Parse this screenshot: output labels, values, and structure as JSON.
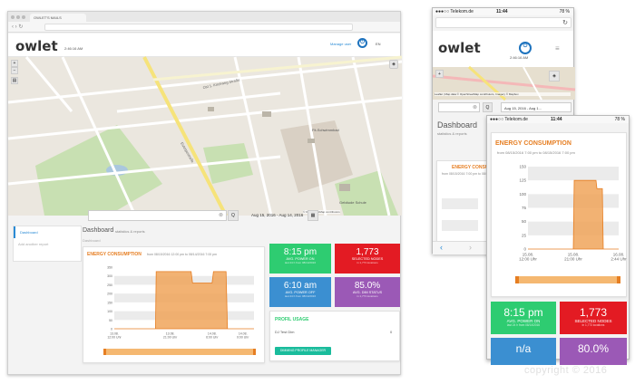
{
  "desktop": {
    "tab_title": "OWLET'S MAILS",
    "logo": "owlet",
    "logo_sub": "2:46:16 AM",
    "user_label": "Manage user",
    "lang": "EN",
    "search_placeholder": "",
    "clear_symbol": "⊗",
    "search_btn": "Q",
    "date_range": "Aug 15, 2016 - Aug 14, 2016",
    "calendar_symbol": "▦",
    "map_attribution": "© OpenStreetMap contributors",
    "map_streets": [
      "Ost 1. Kirchweg-Straße",
      "Euterpestraße",
      "Fit-Schwimmbad",
      "Gebäude Schule"
    ],
    "sidebar": [
      {
        "label": "Dashboard",
        "active": true
      },
      {
        "label": "Add another report",
        "active": false
      }
    ],
    "page_title": "Dashboard",
    "page_subtitle": "statistics & reports",
    "breadcrumb": "Dashboard",
    "energy_title": "ENERGY CONSUMPTION",
    "energy_sub": "from 08/15/2016 12:00 pm to 08/14/2016 7:00 pm",
    "tiles": [
      {
        "value": "8:15 pm",
        "label": "AVG. POWER ON",
        "sub": "last 24 h from 08/14/2016",
        "color": "#2ecc71"
      },
      {
        "value": "1,773",
        "label": "SELECTED NODES",
        "sub": "in 1,773 locations",
        "color": "#e31b23"
      },
      {
        "value": "6:10 am",
        "label": "AVG. POWER OFF",
        "sub": "last 24 h from 08/14/2016",
        "color": "#3b8fd1"
      },
      {
        "value": "85.0%",
        "label": "AVG. DIM STATUS",
        "sub": "in 1,773 locations",
        "color": "#9b59b6"
      }
    ],
    "profile_title": "PROFIL USAGE",
    "profile_row": "DJ Test Dim",
    "profile_count": "0",
    "profile_btn": "DIMMING PROFILE MANAGER"
  },
  "chart_data": [
    {
      "type": "area",
      "title": "ENERGY CONSUMPTION",
      "ylim": [
        0,
        350
      ],
      "yticks": [
        0,
        50,
        100,
        150,
        200,
        250,
        300,
        350
      ],
      "x_labels": [
        "13.08. 12:00 Uhr",
        "13.08. 21:00 Uhr",
        "14.08. 6:00 Uhr",
        "14.08. 9:00 Uhr"
      ],
      "x": [
        0,
        0.295,
        0.3,
        0.55,
        0.56,
        0.6,
        0.7,
        0.71,
        0.8,
        0.81,
        1.0
      ],
      "values": [
        0,
        0,
        325,
        325,
        260,
        260,
        260,
        325,
        325,
        0,
        0
      ],
      "grid": true
    },
    {
      "type": "area",
      "title": "ENERGY CONSUMPTION",
      "ylim": [
        0,
        150
      ],
      "yticks": [
        0,
        25,
        50,
        75,
        100,
        125,
        150
      ],
      "x_labels": [
        "15.08. 12:00 Uhr",
        "15.08. 21:00 Uhr",
        "16.08. 2:44 Uhr"
      ],
      "x": [
        0,
        0.5,
        0.51,
        0.75,
        0.76,
        0.82,
        0.83,
        1.0
      ],
      "values": [
        0,
        0,
        125,
        125,
        110,
        110,
        0,
        0
      ],
      "grid": true
    }
  ],
  "phone_small": {
    "carrier": "●●●○○ Telekom.de",
    "time": "11:44",
    "battery": "78 %",
    "logo": "owlet",
    "logo_sub": "2:46:16 AM",
    "map_credit": "Leaflet | Map data © OpenStreetMap contributors, Imagery © Mapbox",
    "date_range": "Aug 15, 2016 - Aug 1...",
    "page_title": "Dashboard",
    "page_subtitle": "statistics & reports",
    "energy_title": "ENERGY CONSUMPTION",
    "energy_sub": "from 08/15/2016 7:00 pm to 08/..."
  },
  "phone_large": {
    "carrier": "●●●○○ Telekom.de",
    "time": "11:44",
    "battery": "78 %",
    "energy_title": "ENERGY CONSUMPTION",
    "energy_sub": "from 08/15/2016 7:00 pm to 08/15/2016 7:00 pm",
    "tiles": [
      {
        "value": "8:15 pm",
        "label": "AVG. POWER ON",
        "sub": "last 24 h from 08/14/2016",
        "color": "#2ecc71"
      },
      {
        "value": "1,773",
        "label": "SELECTED NODES",
        "sub": "in 1,773 locations",
        "color": "#e31b23"
      },
      {
        "value": "n/a",
        "label": "",
        "sub": "",
        "color": "#3b8fd1"
      },
      {
        "value": "80.0%",
        "label": "",
        "sub": "",
        "color": "#9b59b6"
      }
    ]
  },
  "copyright": "copyright © 2016"
}
